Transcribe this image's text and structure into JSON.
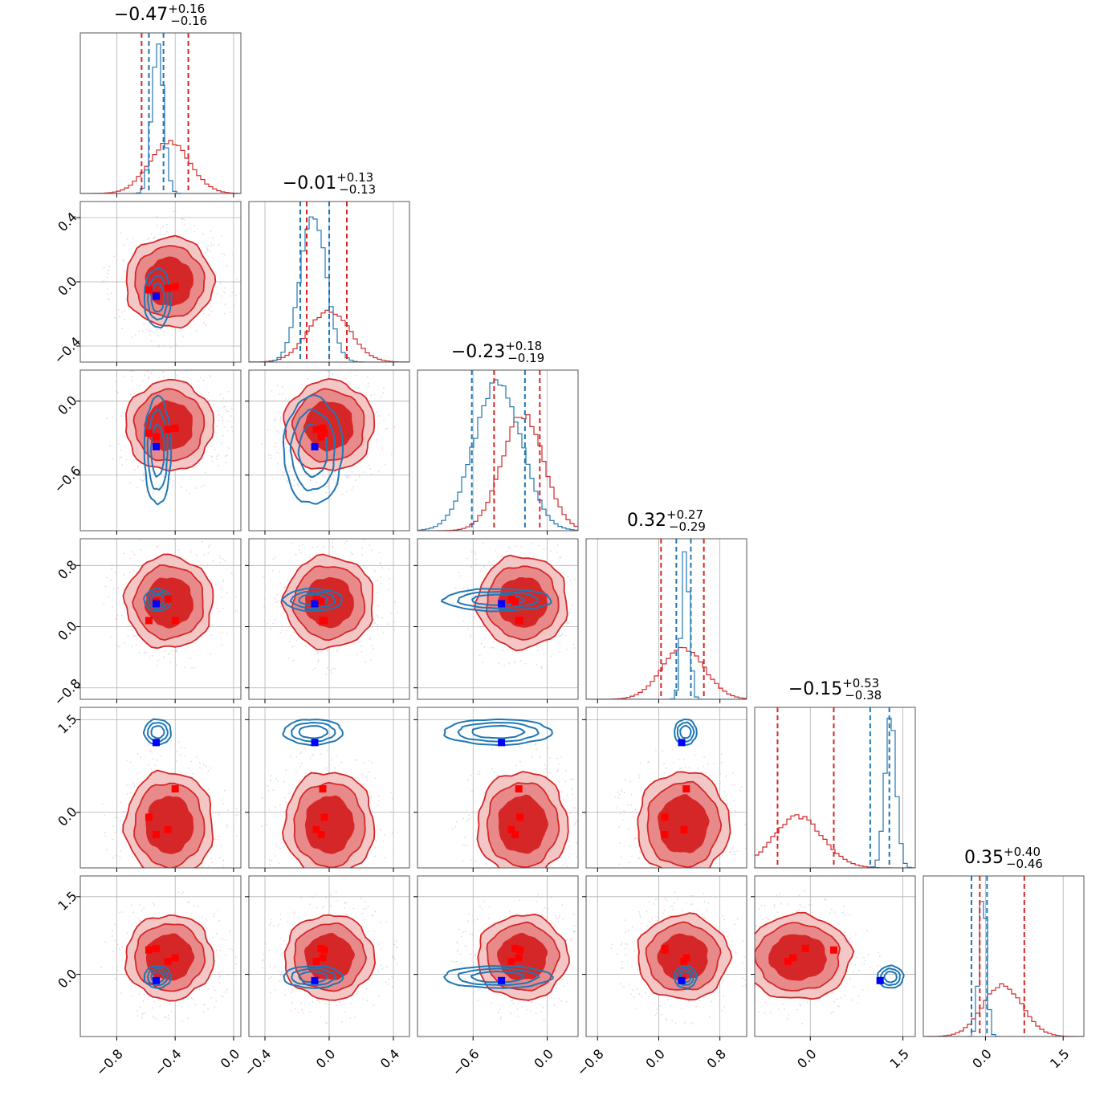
{
  "chart_data": {
    "type": "corner",
    "colors": {
      "blue": "#1f77b4",
      "red": "#d62728",
      "red_fill_outer": "#f4c7c7",
      "red_fill_mid": "#e98a8a",
      "red_fill_inner": "#d62728",
      "marker_blue": "#0000ff",
      "marker_red": "#ff0000",
      "grid": "#b0b0b0"
    },
    "params": [
      {
        "range": [
          -1.05,
          0.05
        ],
        "center": -0.47,
        "up": "0.16",
        "down": "0.16",
        "ticks": [
          {
            "v": -0.8,
            "label": "−0.8"
          },
          {
            "v": -0.4,
            "label": "−0.4"
          },
          {
            "v": 0.0,
            "label": "0.0"
          }
        ],
        "red_mu": -0.44,
        "red_sd": 0.14,
        "blue_mu": -0.52,
        "blue_sd": 0.04,
        "red_q": [
          -0.63,
          -0.31
        ],
        "blue_q": [
          -0.58,
          -0.48
        ],
        "red_marks": [
          -0.58,
          -0.53,
          -0.45,
          -0.4
        ],
        "blue_mark": -0.53
      },
      {
        "range": [
          -0.5,
          0.5
        ],
        "center": "-0.01",
        "up": "0.13",
        "down": "0.13",
        "ticks": [
          {
            "v": -0.4,
            "label": "−0.4"
          },
          {
            "v": 0.0,
            "label": "0.0"
          },
          {
            "v": 0.4,
            "label": "0.4"
          }
        ],
        "red_mu": 0.0,
        "red_sd": 0.13,
        "blue_mu": -0.1,
        "blue_sd": 0.08,
        "red_q": [
          -0.14,
          0.11
        ],
        "blue_q": [
          -0.18,
          0.0
        ],
        "red_marks": [
          -0.03,
          -0.05,
          -0.08,
          -0.04
        ],
        "blue_mark": -0.09
      },
      {
        "range": [
          -1.05,
          0.25
        ],
        "center": "-0.23",
        "up": "0.18",
        "down": "0.19",
        "ticks": [
          {
            "v": -0.6,
            "label": "−0.6"
          },
          {
            "v": 0.0,
            "label": "0.0"
          }
        ],
        "red_mu": -0.2,
        "red_sd": 0.17,
        "blue_mu": -0.4,
        "blue_sd": 0.19,
        "red_q": [
          -0.43,
          -0.06
        ],
        "blue_q": [
          -0.61,
          -0.18
        ],
        "red_marks": [
          -0.22,
          -0.26,
          -0.29,
          -0.23
        ],
        "blue_mark": -0.37
      },
      {
        "range": [
          -0.95,
          1.15
        ],
        "center": "0.32",
        "up": "0.27",
        "down": "0.29",
        "ticks": [
          {
            "v": -0.8,
            "label": "−0.8"
          },
          {
            "v": 0.0,
            "label": "0.0"
          },
          {
            "v": 0.8,
            "label": "0.8"
          }
        ],
        "red_mu": 0.32,
        "red_sd": 0.28,
        "blue_mu": 0.35,
        "blue_sd": 0.05,
        "red_q": [
          0.03,
          0.59
        ],
        "blue_q": [
          0.23,
          0.42
        ],
        "red_marks": [
          0.08,
          0.08,
          0.33,
          0.36
        ],
        "blue_mark": 0.3
      },
      {
        "range": [
          -0.9,
          1.7
        ],
        "center": "-0.15",
        "up": "0.53",
        "down": "0.38",
        "ticks": [
          {
            "v": 0.0,
            "label": "0.0"
          },
          {
            "v": 1.5,
            "label": "1.5"
          }
        ],
        "red_mu": -0.2,
        "red_sd": 0.4,
        "blue_mu": 1.3,
        "blue_sd": 0.09,
        "red_q": [
          -0.53,
          0.38
        ],
        "blue_q": [
          0.97,
          1.28
        ],
        "red_marks": [
          0.38,
          -0.08,
          -0.36,
          -0.28
        ],
        "blue_mark": 1.13
      },
      {
        "range": [
          -1.2,
          1.9
        ],
        "center": "0.35",
        "up": "0.40",
        "down": "0.46",
        "ticks": [
          {
            "v": 0.0,
            "label": "0.0"
          },
          {
            "v": 1.5,
            "label": "1.5"
          }
        ],
        "red_mu": 0.33,
        "red_sd": 0.38,
        "blue_mu": -0.05,
        "blue_sd": 0.07,
        "red_q": [
          -0.11,
          0.75
        ],
        "blue_q": [
          -0.27,
          0.03
        ],
        "red_marks": [
          0.32,
          0.47,
          0.5,
          0.25
        ],
        "blue_mark": -0.12
      }
    ]
  }
}
